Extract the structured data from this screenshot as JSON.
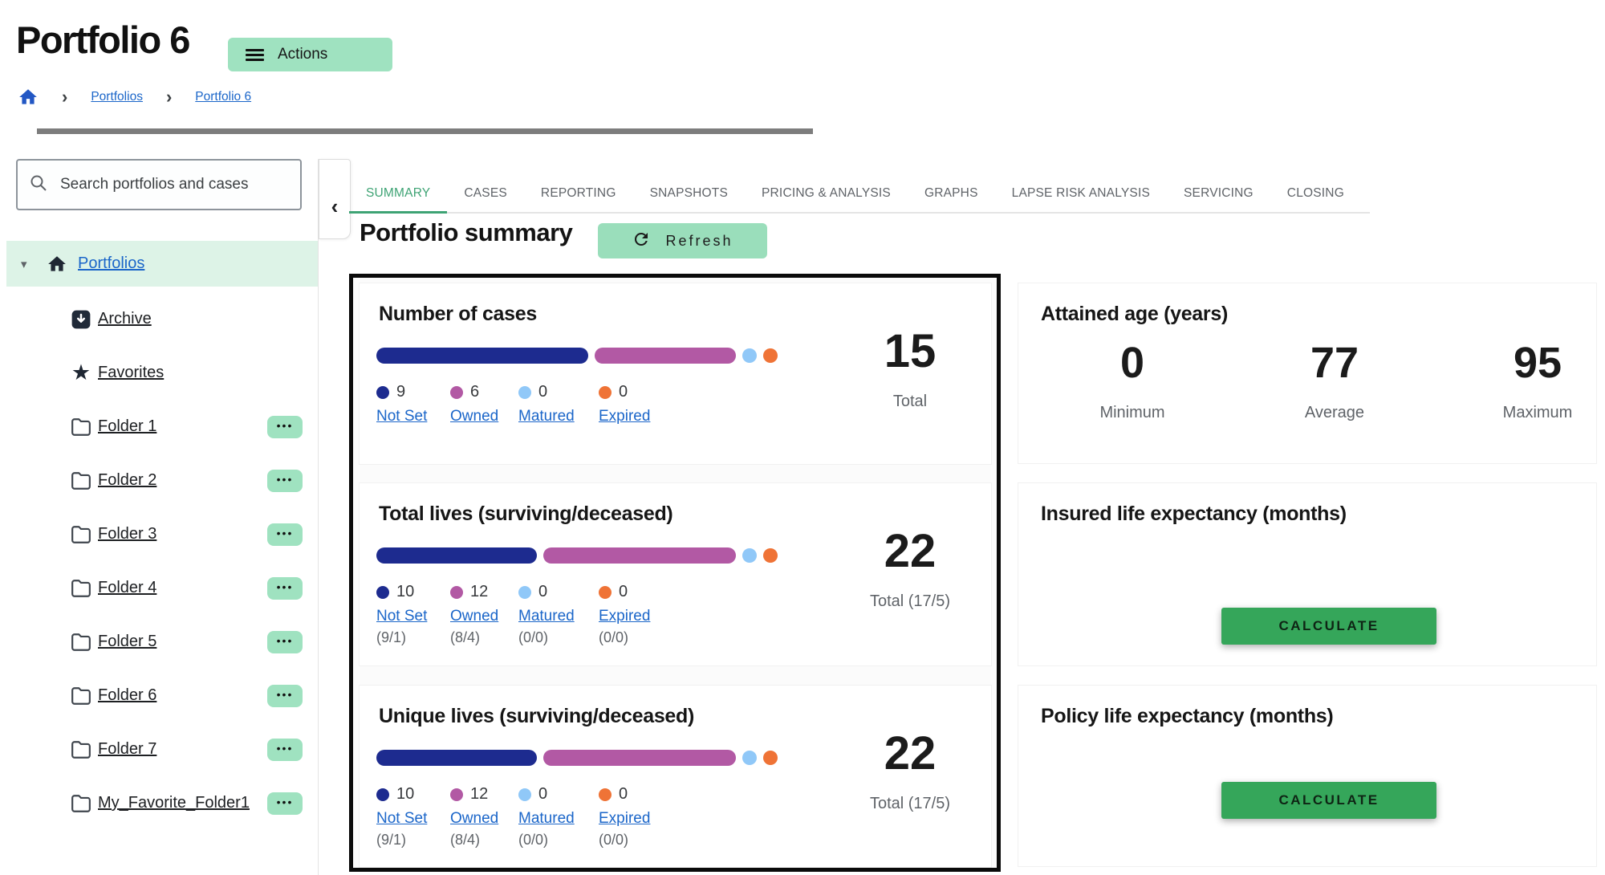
{
  "header": {
    "title": "Portfolio 6",
    "actions_label": "Actions",
    "breadcrumb": {
      "items": [
        "Portfolios",
        "Portfolio 6"
      ]
    }
  },
  "sidebar": {
    "search_placeholder": "Search portfolios and cases",
    "root_label": "Portfolios",
    "items": [
      {
        "label": "Archive",
        "icon": "archive-icon",
        "menu": false
      },
      {
        "label": "Favorites",
        "icon": "star-icon",
        "menu": false
      },
      {
        "label": "Folder 1",
        "icon": "folder-icon",
        "menu": true
      },
      {
        "label": "Folder 2",
        "icon": "folder-icon",
        "menu": true
      },
      {
        "label": "Folder 3",
        "icon": "folder-icon",
        "menu": true
      },
      {
        "label": "Folder 4",
        "icon": "folder-icon",
        "menu": true
      },
      {
        "label": "Folder 5",
        "icon": "folder-icon",
        "menu": true
      },
      {
        "label": "Folder 6",
        "icon": "folder-icon",
        "menu": true
      },
      {
        "label": "Folder 7",
        "icon": "folder-icon",
        "menu": true
      },
      {
        "label": "My_Favorite_Folder1",
        "icon": "folder-icon",
        "menu": true
      }
    ]
  },
  "tabs": [
    "SUMMARY",
    "CASES",
    "REPORTING",
    "SNAPSHOTS",
    "PRICING & ANALYSIS",
    "GRAPHS",
    "LAPSE RISK ANALYSIS",
    "SERVICING",
    "CLOSING"
  ],
  "active_tab": "SUMMARY",
  "main": {
    "heading": "Portfolio summary",
    "refresh_label": "Refresh"
  },
  "summary_cards": [
    {
      "title": "Number of cases",
      "items": [
        {
          "value": 9,
          "display": "9",
          "label": "Not Set",
          "color": "#1d2b8f"
        },
        {
          "value": 6,
          "display": "6",
          "label": "Owned",
          "color": "#b259a4"
        },
        {
          "value": 0,
          "display": "0",
          "label": "Matured",
          "color": "#90c8f8"
        },
        {
          "value": 0,
          "display": "0",
          "label": "Expired",
          "color": "#ef7336"
        }
      ],
      "total": "15",
      "total_label": "Total"
    },
    {
      "title": "Total lives (surviving/deceased)",
      "items": [
        {
          "value": 10,
          "display": "10",
          "label": "Not Set",
          "sub": "(9/1)",
          "color": "#1d2b8f"
        },
        {
          "value": 12,
          "display": "12",
          "label": "Owned",
          "sub": "(8/4)",
          "color": "#b259a4"
        },
        {
          "value": 0,
          "display": "0",
          "label": "Matured",
          "sub": "(0/0)",
          "color": "#90c8f8"
        },
        {
          "value": 0,
          "display": "0",
          "label": "Expired",
          "sub": "(0/0)",
          "color": "#ef7336"
        }
      ],
      "total": "22",
      "total_label": "Total (17/5)"
    },
    {
      "title": "Unique lives (surviving/deceased)",
      "items": [
        {
          "value": 10,
          "display": "10",
          "label": "Not Set",
          "sub": "(9/1)",
          "color": "#1d2b8f"
        },
        {
          "value": 12,
          "display": "12",
          "label": "Owned",
          "sub": "(8/4)",
          "color": "#b259a4"
        },
        {
          "value": 0,
          "display": "0",
          "label": "Matured",
          "sub": "(0/0)",
          "color": "#90c8f8"
        },
        {
          "value": 0,
          "display": "0",
          "label": "Expired",
          "sub": "(0/0)",
          "color": "#ef7336"
        }
      ],
      "total": "22",
      "total_label": "Total (17/5)"
    }
  ],
  "right_cards": {
    "attained": {
      "title": "Attained age (years)",
      "stats": [
        {
          "value": "0",
          "label": "Minimum"
        },
        {
          "value": "77",
          "label": "Average"
        },
        {
          "value": "95",
          "label": "Maximum"
        }
      ]
    },
    "insured": {
      "title": "Insured life expectancy (months)",
      "button_label": "CALCULATE"
    },
    "policy": {
      "title": "Policy life expectancy (months)",
      "button_label": "CALCULATE"
    }
  },
  "icons": {
    "caret_down": "▾",
    "collapse_chevron": "‹",
    "breadcrumb_separator": "›",
    "star": "★",
    "menu_dots": "•••"
  },
  "colors": {
    "accent_green_light": "#9fe2c0",
    "accent_green": "#35a65a",
    "tab_active": "#3ea374",
    "link_blue": "#1b66c9",
    "navy": "#1d2b8f",
    "purple": "#b259a4",
    "light_blue": "#90c8f8",
    "orange": "#ef7336"
  }
}
